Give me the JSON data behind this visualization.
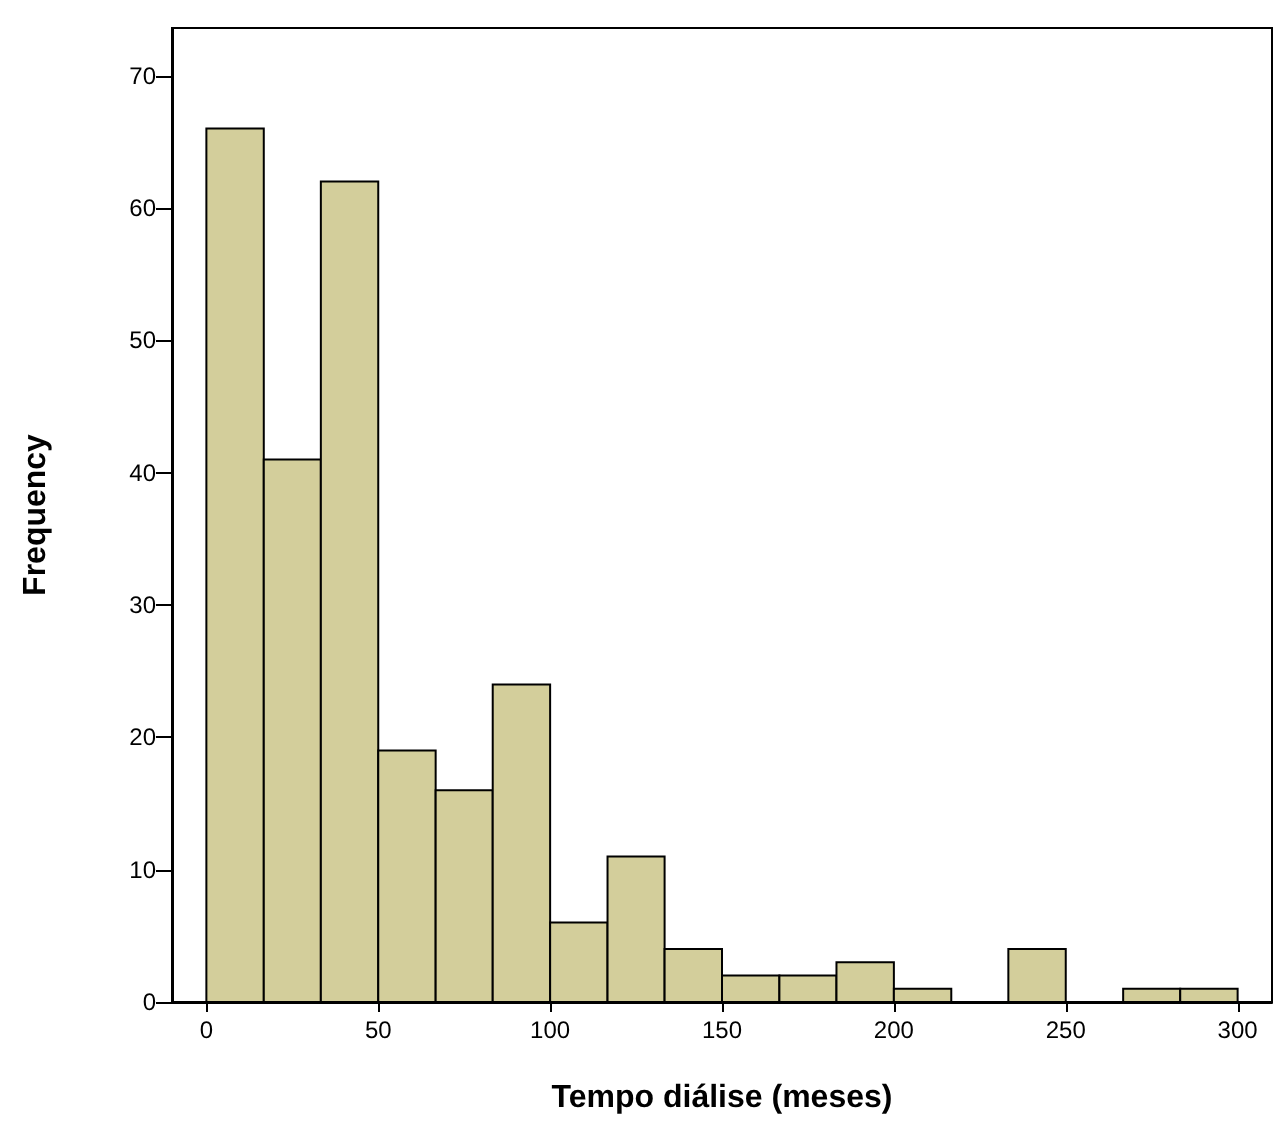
{
  "chart_data": {
    "type": "histogram",
    "xlabel": "Tempo diálise (meses)",
    "ylabel": "Frequency",
    "bins": [
      0,
      16.7,
      33.3,
      50,
      66.7,
      83.3,
      100,
      116.7,
      133.3,
      150,
      166.7,
      183.3,
      200,
      216.7,
      233.3,
      250,
      266.7,
      283.3,
      300
    ],
    "values": [
      66,
      41,
      62,
      19,
      16,
      24,
      6,
      11,
      4,
      2,
      2,
      3,
      1,
      0,
      4,
      0,
      1,
      1
    ],
    "color": "#d3ce9b",
    "xlim": [
      -10,
      310
    ],
    "xticks": [
      0,
      50,
      100,
      150,
      200,
      250,
      300
    ],
    "ylim": [
      0,
      73.6
    ],
    "yticks": [
      0,
      10,
      20,
      30,
      40,
      50,
      60,
      70
    ],
    "grid": false
  }
}
